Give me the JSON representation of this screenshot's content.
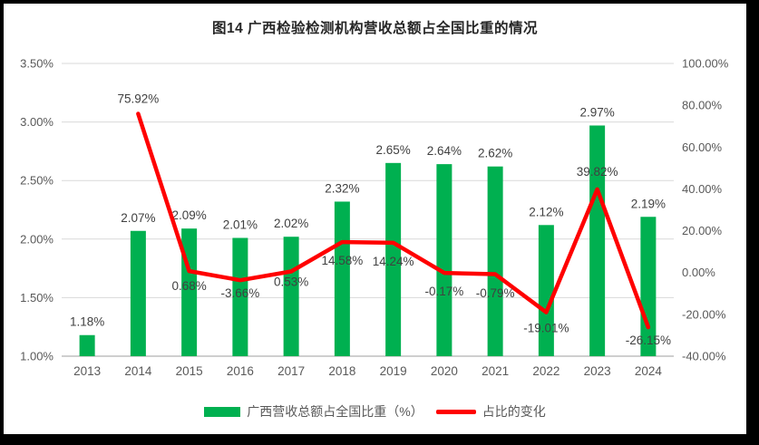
{
  "title": "图14 广西检验检测机构营收总额占全国比重的情况",
  "legend": {
    "bar_label": "广西营收总额占全国比重（%）",
    "line_label": "占比的变化"
  },
  "colors": {
    "bar": "#00B050",
    "line": "#FF0000",
    "gridline": "#D9D9D9",
    "axis_line": "#BFBFBF",
    "tick_text": "#595959",
    "label_text": "#404040",
    "title_text": "#262626",
    "frame": "#000000",
    "background": "#FFFFFF"
  },
  "chart_data": {
    "type": "combo-bar-line",
    "title": "图14 广西检验检测机构营收总额占全国比重的情况",
    "categories": [
      "2013",
      "2014",
      "2015",
      "2016",
      "2017",
      "2018",
      "2019",
      "2020",
      "2021",
      "2022",
      "2023",
      "2024"
    ],
    "series": [
      {
        "name": "广西营收总额占全国比重（%）",
        "type": "bar",
        "axis": "left",
        "values": [
          1.18,
          2.07,
          2.09,
          2.01,
          2.02,
          2.32,
          2.65,
          2.64,
          2.62,
          2.12,
          2.97,
          2.19
        ]
      },
      {
        "name": "占比的变化",
        "type": "line",
        "axis": "right",
        "values": [
          null,
          75.92,
          0.68,
          -3.66,
          0.53,
          14.58,
          14.24,
          -0.17,
          -0.79,
          -19.01,
          39.82,
          -26.15
        ]
      }
    ],
    "left_axis": {
      "min": 1.0,
      "max": 3.5,
      "tick_labels": [
        "3.50%",
        "3.00%",
        "2.50%",
        "2.00%",
        "1.50%",
        "1.00%"
      ]
    },
    "right_axis": {
      "min": -40,
      "max": 100,
      "tick_labels": [
        "100.00%",
        "80.00%",
        "60.00%",
        "40.00%",
        "20.00%",
        "0.00%",
        "-20.00%",
        "-40.00%"
      ]
    },
    "grid": "horizontal",
    "legend_position": "bottom",
    "data_labels": true
  }
}
